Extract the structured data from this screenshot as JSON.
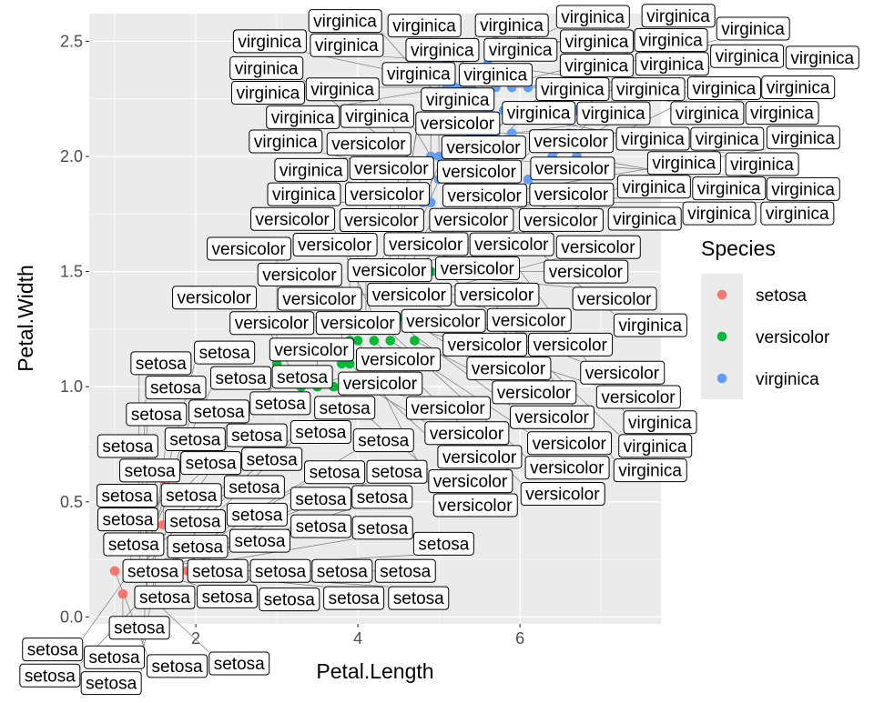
{
  "chart_data": {
    "type": "scatter",
    "xlabel": "Petal.Length",
    "ylabel": "Petal.Width",
    "xlim": [
      0.685,
      7.74
    ],
    "ylim": [
      -0.03,
      2.62
    ],
    "x_ticks": [
      2,
      4,
      6
    ],
    "y_ticks": [
      0.0,
      0.5,
      1.0,
      1.5,
      2.0,
      2.5
    ],
    "x_tick_labels": [
      "2",
      "4",
      "6"
    ],
    "y_tick_labels": [
      "0.0",
      "0.5",
      "1.0",
      "1.5",
      "2.0",
      "2.5"
    ],
    "grid": true,
    "panel_background": "#EBEBEB",
    "legend": {
      "title": "Species",
      "placement": "right"
    },
    "label_nudge_x": 0.5,
    "series": [
      {
        "name": "setosa",
        "color": "#F8766D",
        "x": [
          1.4,
          1.4,
          1.3,
          1.5,
          1.4,
          1.7,
          1.4,
          1.5,
          1.4,
          1.5,
          1.5,
          1.6,
          1.4,
          1.1,
          1.2,
          1.5,
          1.3,
          1.4,
          1.7,
          1.5,
          1.7,
          1.5,
          1.0,
          1.7,
          1.9,
          1.6,
          1.6,
          1.5,
          1.4,
          1.6,
          1.6,
          1.5,
          1.5,
          1.4,
          1.5,
          1.2,
          1.3,
          1.4,
          1.3,
          1.5,
          1.3,
          1.3,
          1.3,
          1.6,
          1.9,
          1.4,
          1.6,
          1.4,
          1.5,
          1.4
        ],
        "y": [
          0.2,
          0.2,
          0.2,
          0.2,
          0.2,
          0.4,
          0.3,
          0.2,
          0.2,
          0.1,
          0.2,
          0.2,
          0.1,
          0.1,
          0.2,
          0.4,
          0.4,
          0.3,
          0.3,
          0.3,
          0.2,
          0.4,
          0.2,
          0.5,
          0.2,
          0.2,
          0.4,
          0.2,
          0.2,
          0.2,
          0.2,
          0.4,
          0.1,
          0.2,
          0.2,
          0.2,
          0.2,
          0.1,
          0.2,
          0.2,
          0.3,
          0.3,
          0.2,
          0.6,
          0.4,
          0.3,
          0.2,
          0.2,
          0.2,
          0.2
        ]
      },
      {
        "name": "versicolor",
        "color": "#00BA38",
        "x": [
          4.7,
          4.5,
          4.9,
          4.0,
          4.6,
          4.5,
          4.7,
          3.3,
          4.6,
          3.9,
          3.5,
          4.2,
          4.0,
          4.7,
          3.6,
          4.4,
          4.5,
          4.1,
          4.5,
          3.9,
          4.8,
          4.0,
          4.9,
          4.7,
          4.3,
          4.4,
          4.8,
          5.0,
          4.5,
          3.5,
          3.8,
          3.7,
          3.9,
          5.1,
          4.5,
          4.5,
          4.7,
          4.4,
          4.1,
          4.0,
          4.4,
          4.6,
          4.0,
          3.3,
          4.2,
          4.2,
          4.2,
          4.3,
          3.0,
          4.1
        ],
        "y": [
          1.4,
          1.5,
          1.5,
          1.3,
          1.5,
          1.3,
          1.6,
          1.0,
          1.3,
          1.4,
          1.0,
          1.5,
          1.0,
          1.4,
          1.3,
          1.4,
          1.5,
          1.0,
          1.5,
          1.1,
          1.8,
          1.3,
          1.5,
          1.2,
          1.3,
          1.4,
          1.4,
          1.7,
          1.5,
          1.0,
          1.1,
          1.0,
          1.2,
          1.6,
          1.5,
          1.6,
          1.5,
          1.3,
          1.3,
          1.3,
          1.2,
          1.4,
          1.2,
          1.0,
          1.3,
          1.2,
          1.3,
          1.3,
          1.1,
          1.3
        ]
      },
      {
        "name": "virginica",
        "color": "#619CFF",
        "x": [
          6.0,
          5.1,
          5.9,
          5.6,
          5.8,
          6.6,
          4.5,
          6.3,
          5.8,
          6.1,
          5.1,
          5.3,
          5.5,
          5.0,
          5.1,
          5.3,
          5.5,
          6.7,
          6.9,
          5.0,
          5.7,
          4.9,
          6.7,
          4.9,
          5.7,
          6.0,
          4.8,
          4.9,
          5.6,
          5.8,
          6.1,
          6.4,
          5.6,
          5.1,
          5.6,
          6.1,
          5.6,
          5.5,
          4.8,
          5.4,
          5.6,
          5.1,
          5.1,
          5.9,
          5.7,
          5.2,
          5.0,
          5.2,
          5.4,
          5.1
        ],
        "y": [
          2.5,
          1.9,
          2.1,
          1.8,
          2.2,
          2.1,
          1.7,
          1.8,
          1.8,
          2.5,
          2.0,
          1.9,
          2.1,
          2.0,
          2.4,
          2.3,
          1.8,
          2.2,
          2.3,
          1.5,
          2.3,
          2.0,
          2.0,
          1.8,
          2.1,
          1.8,
          1.8,
          1.8,
          2.1,
          1.6,
          1.9,
          2.0,
          2.2,
          1.5,
          1.4,
          2.3,
          2.4,
          1.8,
          1.8,
          2.1,
          2.4,
          2.3,
          1.9,
          2.3,
          2.5,
          2.3,
          1.9,
          2.0,
          2.3,
          1.8
        ]
      }
    ]
  }
}
